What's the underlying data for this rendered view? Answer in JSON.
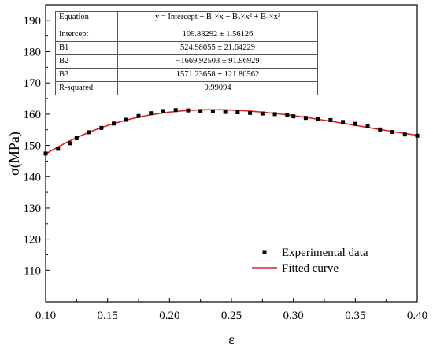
{
  "chart_data": {
    "type": "scatter",
    "xlabel": "ε",
    "ylabel": "σ(MPa)",
    "xlim": [
      0.1,
      0.4
    ],
    "ylim": [
      100,
      195
    ],
    "x_ticks": [
      "0.10",
      "0.15",
      "0.20",
      "0.25",
      "0.30",
      "0.35",
      "0.40"
    ],
    "y_ticks": [
      "110",
      "120",
      "130",
      "140",
      "150",
      "160",
      "170",
      "180",
      "190"
    ],
    "legend_position": "bottom-right",
    "series": [
      {
        "name": "Experimental data",
        "kind": "markers",
        "color": "#000000",
        "x": [
          0.1,
          0.11,
          0.12,
          0.125,
          0.135,
          0.145,
          0.155,
          0.165,
          0.175,
          0.185,
          0.195,
          0.205,
          0.215,
          0.225,
          0.235,
          0.245,
          0.255,
          0.265,
          0.275,
          0.285,
          0.295,
          0.3,
          0.31,
          0.32,
          0.33,
          0.34,
          0.35,
          0.36,
          0.37,
          0.38,
          0.39,
          0.4
        ],
        "y": [
          147.4,
          148.9,
          150.7,
          152.3,
          154.2,
          155.6,
          157.0,
          158.2,
          159.4,
          160.3,
          161.0,
          161.3,
          161.2,
          161.0,
          160.9,
          160.7,
          160.6,
          160.4,
          160.2,
          160.0,
          159.8,
          159.3,
          158.8,
          158.5,
          158.1,
          157.5,
          156.9,
          156.1,
          155.1,
          154.3,
          153.5,
          153.1
        ]
      },
      {
        "name": "Fitted curve",
        "kind": "line",
        "color": "#e02020",
        "equation_coefficients": {
          "intercept": 109.88292,
          "b1": 524.98055,
          "b2": -1669.92503,
          "b3": 1571.23658
        }
      }
    ],
    "fit_table": {
      "rows": [
        {
          "key": "Equation",
          "value": "y = Intercept + B₁×x + B₂×x² + B₃×x³"
        },
        {
          "key": "Intercept",
          "value": "109.88292 ± 1.56126"
        },
        {
          "key": "B1",
          "value": "524.98055 ± 21.64229"
        },
        {
          "key": "B2",
          "value": "−1669.92503 ± 91.96929"
        },
        {
          "key": "B3",
          "value": "1571.23658 ± 121.80562"
        },
        {
          "key": "R-squared",
          "value": "0.99094"
        }
      ]
    }
  }
}
